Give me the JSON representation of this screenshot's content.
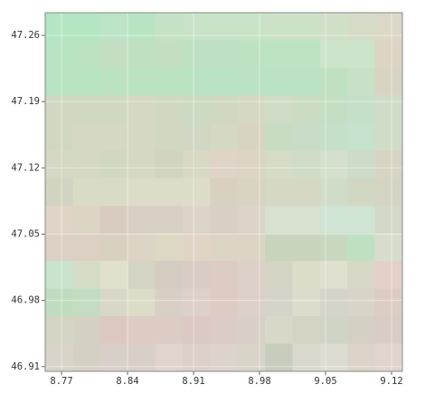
{
  "chart_data": {
    "type": "raster",
    "xlim": [
      8.7527,
      9.1315
    ],
    "ylim": [
      46.905,
      47.284
    ],
    "xticks": [
      8.77,
      8.84,
      8.91,
      8.98,
      9.05,
      9.12
    ],
    "yticks": [
      46.91,
      46.98,
      47.05,
      47.12,
      47.19,
      47.26
    ],
    "grid": true,
    "colors": [
      [
        "#b4e6c4",
        "#b4e6c4",
        "#bce4c6",
        "#b8e4c4",
        "#c4e2c6",
        "#c8e2c8",
        "#c8e2c8",
        "#c8e2c8",
        "#cce2c8",
        "#cce2c8",
        "#d0e0c8",
        "#d4dcc8",
        "#dcd8c8"
      ],
      [
        "#b8e4c4",
        "#bce2c4",
        "#c4dec4",
        "#c0e0c4",
        "#c4dec4",
        "#bee0c4",
        "#bee0c4",
        "#bce2c4",
        "#bce4c4",
        "#bce4c4",
        "#cce4cc",
        "#cce4cc",
        "#dcd4c4"
      ],
      [
        "#b8e4c4",
        "#b8e4c4",
        "#bce2c4",
        "#bce2c4",
        "#bce2c4",
        "#bae2c4",
        "#bae2c4",
        "#bae2c4",
        "#bae2c4",
        "#bae2c4",
        "#c0e0c4",
        "#c8e0c8",
        "#d8d4c4"
      ],
      [
        "#d0d8c4",
        "#d0d8c4",
        "#d0d8c4",
        "#d4d8c4",
        "#d0d8c4",
        "#ccdac4",
        "#d0d8c4",
        "#d4d8c4",
        "#d0dcc8",
        "#ccdcc4",
        "#c4dec4",
        "#c4e0c8",
        "#d0dcc8"
      ],
      [
        "#d0d8c4",
        "#d4d8c4",
        "#d4d8c4",
        "#d4d8c4",
        "#d0d8c4",
        "#d0d8c4",
        "#d4d8c4",
        "#d8d4c4",
        "#c8dcc4",
        "#c8dcc8",
        "#c4e0c8",
        "#c4e2cc",
        "#d0dcc8"
      ],
      [
        "#d4d8c4",
        "#d4d8c4",
        "#d0d8c4",
        "#d4d8c4",
        "#d0d4c0",
        "#d8d8c4",
        "#e0d4c8",
        "#dcd4c4",
        "#d4dcc8",
        "#d0dcc8",
        "#d4e0cc",
        "#ccdcc8",
        "#d8d4c4"
      ],
      [
        "#d0d4c0",
        "#d8dcc4",
        "#d8dcc4",
        "#dcdcc8",
        "#dcdcc8",
        "#dcdcc8",
        "#d8d0c0",
        "#d8d4c4",
        "#d4d8c4",
        "#d4d8c4",
        "#d0dcc8",
        "#d0d8c4",
        "#d4d4c4"
      ],
      [
        "#e0d4c8",
        "#dcd4c4",
        "#d8ccc0",
        "#d8d0c4",
        "#d8d0c4",
        "#dcd4c8",
        "#d8d0c4",
        "#dcd4c8",
        "#d8e0d0",
        "#d8e0d0",
        "#d0e4d4",
        "#d0e4d4",
        "#d4d8c8"
      ],
      [
        "#dcd0c4",
        "#dcd0c4",
        "#d8d0c0",
        "#dcd4c4",
        "#dcd8c4",
        "#e0d4c4",
        "#dcd4c4",
        "#dcd4c4",
        "#c8d4bc",
        "#c8d4bc",
        "#c8d8c0",
        "#c0e0c4",
        "#d8dccc"
      ],
      [
        "#c8e4cc",
        "#d4dcc8",
        "#e0e0cc",
        "#d4d4c4",
        "#d4ccc0",
        "#d8ccc4",
        "#dcccc4",
        "#dcd0c8",
        "#d4d4c4",
        "#dcdcc8",
        "#e0e0d0",
        "#d8d8c8",
        "#e4d0c8"
      ],
      [
        "#c0dcc0",
        "#c4dcc4",
        "#d8d8c8",
        "#dcdcc8",
        "#d8d0c4",
        "#dcd0c8",
        "#dcccc4",
        "#dcd0c8",
        "#d4d4c8",
        "#dcdccc",
        "#d4d4c8",
        "#d8d4c8",
        "#dcccc4"
      ],
      [
        "#d4d4c4",
        "#d4d0c4",
        "#dcc8c0",
        "#dcccc4",
        "#dcccc4",
        "#dcc8c4",
        "#dcccc8",
        "#d8d0c8",
        "#d8d8c8",
        "#d4d4c4",
        "#d0d4c4",
        "#d4d0c4",
        "#d8ccc4"
      ],
      [
        "#d8d4c8",
        "#d4d0c4",
        "#d8d0c8",
        "#d8d0c8",
        "#e0d4cc",
        "#dcd0c8",
        "#dcd4cc",
        "#d8d4c8",
        "#c8ccbc",
        "#d8d8cc",
        "#dcdcd0",
        "#dcd4c8",
        "#e0d4cc"
      ]
    ]
  }
}
